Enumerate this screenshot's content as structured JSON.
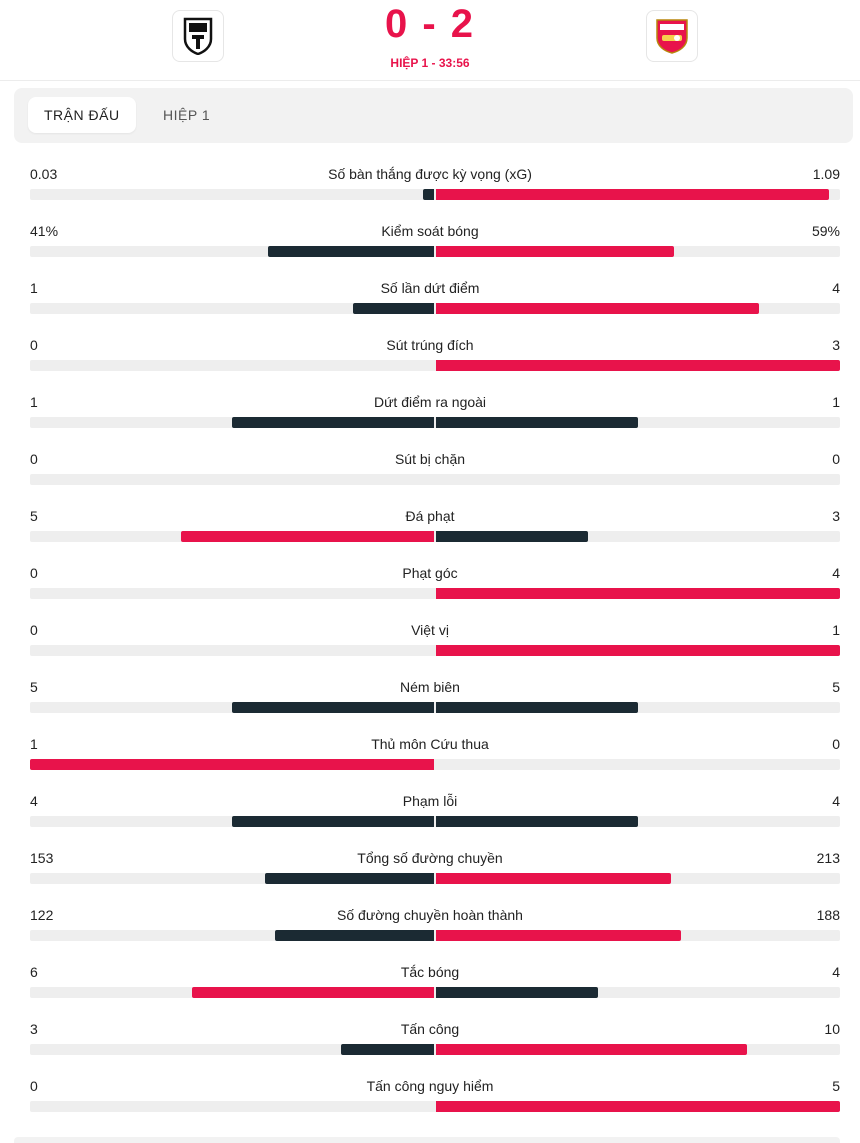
{
  "match": {
    "home_logo": "fulham-crest-icon",
    "away_logo": "arsenal-crest-icon",
    "score": "0 - 2",
    "period": "HIỆP 1 - 33:56"
  },
  "tabs": [
    {
      "label": "TRẬN ĐẤU",
      "active": true
    },
    {
      "label": "HIỆP 1",
      "active": false
    }
  ],
  "colors": {
    "accent": "#e8134b",
    "dark": "#1b2a33",
    "track": "#eeeeee"
  },
  "stats": [
    {
      "label": "Số bàn thắng được kỳ vọng (xG)",
      "home": "0.03",
      "away": "1.09",
      "home_ratio": 0.027,
      "away_ratio": 0.973,
      "home_win": false,
      "away_win": true
    },
    {
      "label": "Kiểm soát bóng",
      "home": "41%",
      "away": "59%",
      "home_ratio": 0.41,
      "away_ratio": 0.59,
      "home_win": false,
      "away_win": true
    },
    {
      "label": "Số lần dứt điểm",
      "home": "1",
      "away": "4",
      "home_ratio": 0.2,
      "away_ratio": 0.8,
      "home_win": false,
      "away_win": true
    },
    {
      "label": "Sút trúng đích",
      "home": "0",
      "away": "3",
      "home_ratio": 0,
      "away_ratio": 1,
      "home_win": false,
      "away_win": true
    },
    {
      "label": "Dứt điểm ra ngoài",
      "home": "1",
      "away": "1",
      "home_ratio": 0.5,
      "away_ratio": 0.5,
      "home_win": false,
      "away_win": false
    },
    {
      "label": "Sút bị chặn",
      "home": "0",
      "away": "0",
      "home_ratio": 0,
      "away_ratio": 0,
      "home_win": false,
      "away_win": false
    },
    {
      "label": "Đá phạt",
      "home": "5",
      "away": "3",
      "home_ratio": 0.625,
      "away_ratio": 0.375,
      "home_win": true,
      "away_win": false
    },
    {
      "label": "Phạt góc",
      "home": "0",
      "away": "4",
      "home_ratio": 0,
      "away_ratio": 1,
      "home_win": false,
      "away_win": true
    },
    {
      "label": "Việt vị",
      "home": "0",
      "away": "1",
      "home_ratio": 0,
      "away_ratio": 1,
      "home_win": false,
      "away_win": true
    },
    {
      "label": "Ném biên",
      "home": "5",
      "away": "5",
      "home_ratio": 0.5,
      "away_ratio": 0.5,
      "home_win": false,
      "away_win": false
    },
    {
      "label": "Thủ môn Cứu thua",
      "home": "1",
      "away": "0",
      "home_ratio": 1,
      "away_ratio": 0,
      "home_win": true,
      "away_win": false
    },
    {
      "label": "Phạm lỗi",
      "home": "4",
      "away": "4",
      "home_ratio": 0.5,
      "away_ratio": 0.5,
      "home_win": false,
      "away_win": false
    },
    {
      "label": "Tổng số đường chuyền",
      "home": "153",
      "away": "213",
      "home_ratio": 0.418,
      "away_ratio": 0.582,
      "home_win": false,
      "away_win": true
    },
    {
      "label": "Số đường chuyền hoàn thành",
      "home": "122",
      "away": "188",
      "home_ratio": 0.394,
      "away_ratio": 0.606,
      "home_win": false,
      "away_win": true
    },
    {
      "label": "Tắc bóng",
      "home": "6",
      "away": "4",
      "home_ratio": 0.6,
      "away_ratio": 0.4,
      "home_win": true,
      "away_win": false
    },
    {
      "label": "Tấn công",
      "home": "3",
      "away": "10",
      "home_ratio": 0.231,
      "away_ratio": 0.769,
      "home_win": false,
      "away_win": true
    },
    {
      "label": "Tấn công nguy hiểm",
      "home": "0",
      "away": "5",
      "home_ratio": 0,
      "away_ratio": 1,
      "home_win": false,
      "away_win": true
    }
  ]
}
